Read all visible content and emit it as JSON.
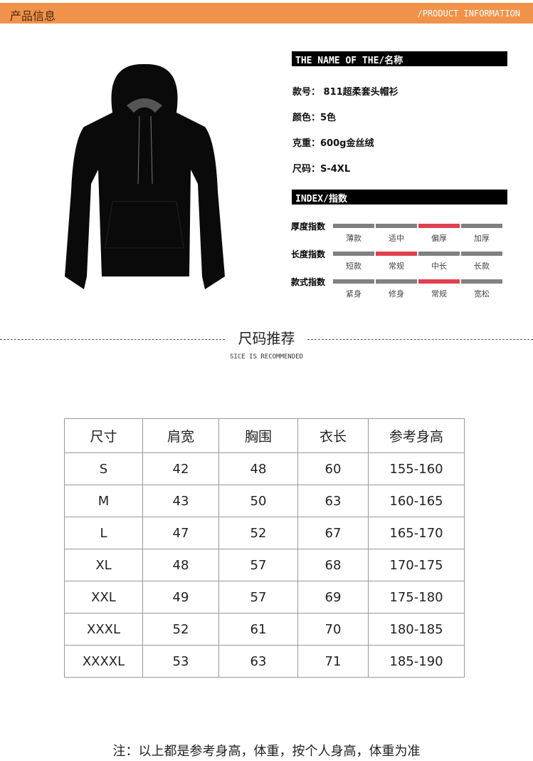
{
  "header": {
    "title": "产品信息",
    "subtitle": "/PRODUCT INFORMATION",
    "color": "#f0924a"
  },
  "name_section": {
    "title": "THE NAME OF THE/名称",
    "items": [
      "款号： 811超柔套头帽衫",
      "颜色：5色",
      "克重：600g金丝绒",
      "尺码：S-4XL"
    ]
  },
  "index_section": {
    "title": "INDEX/指数",
    "rows": [
      {
        "label": "厚度指数",
        "options": [
          "薄款",
          "适中",
          "偏厚",
          "加厚"
        ],
        "selected": 2
      },
      {
        "label": "长度指数",
        "options": [
          "短款",
          "常规",
          "中长",
          "长款"
        ],
        "selected": 1
      },
      {
        "label": "款式指数",
        "options": [
          "紧身",
          "修身",
          "常规",
          "宽松"
        ],
        "selected": 2
      }
    ],
    "highlight_color": "#e04050"
  },
  "size_section": {
    "title": "尺码推荐",
    "subtitle": "SICE IS RECOMMENDED"
  },
  "size_table": {
    "headers": [
      "尺寸",
      "肩宽",
      "胸围",
      "衣长",
      "参考身高"
    ],
    "rows": [
      [
        "S",
        "42",
        "48",
        "60",
        "155-160"
      ],
      [
        "M",
        "43",
        "50",
        "63",
        "160-165"
      ],
      [
        "L",
        "47",
        "52",
        "67",
        "165-170"
      ],
      [
        "XL",
        "48",
        "57",
        "68",
        "170-175"
      ],
      [
        "XXL",
        "49",
        "57",
        "69",
        "175-180"
      ],
      [
        "XXXL",
        "52",
        "61",
        "70",
        "180-185"
      ],
      [
        "XXXXL",
        "53",
        "63",
        "71",
        "185-190"
      ]
    ]
  },
  "note": "注：以上都是参考身高，体重，按个人身高，体重为准"
}
